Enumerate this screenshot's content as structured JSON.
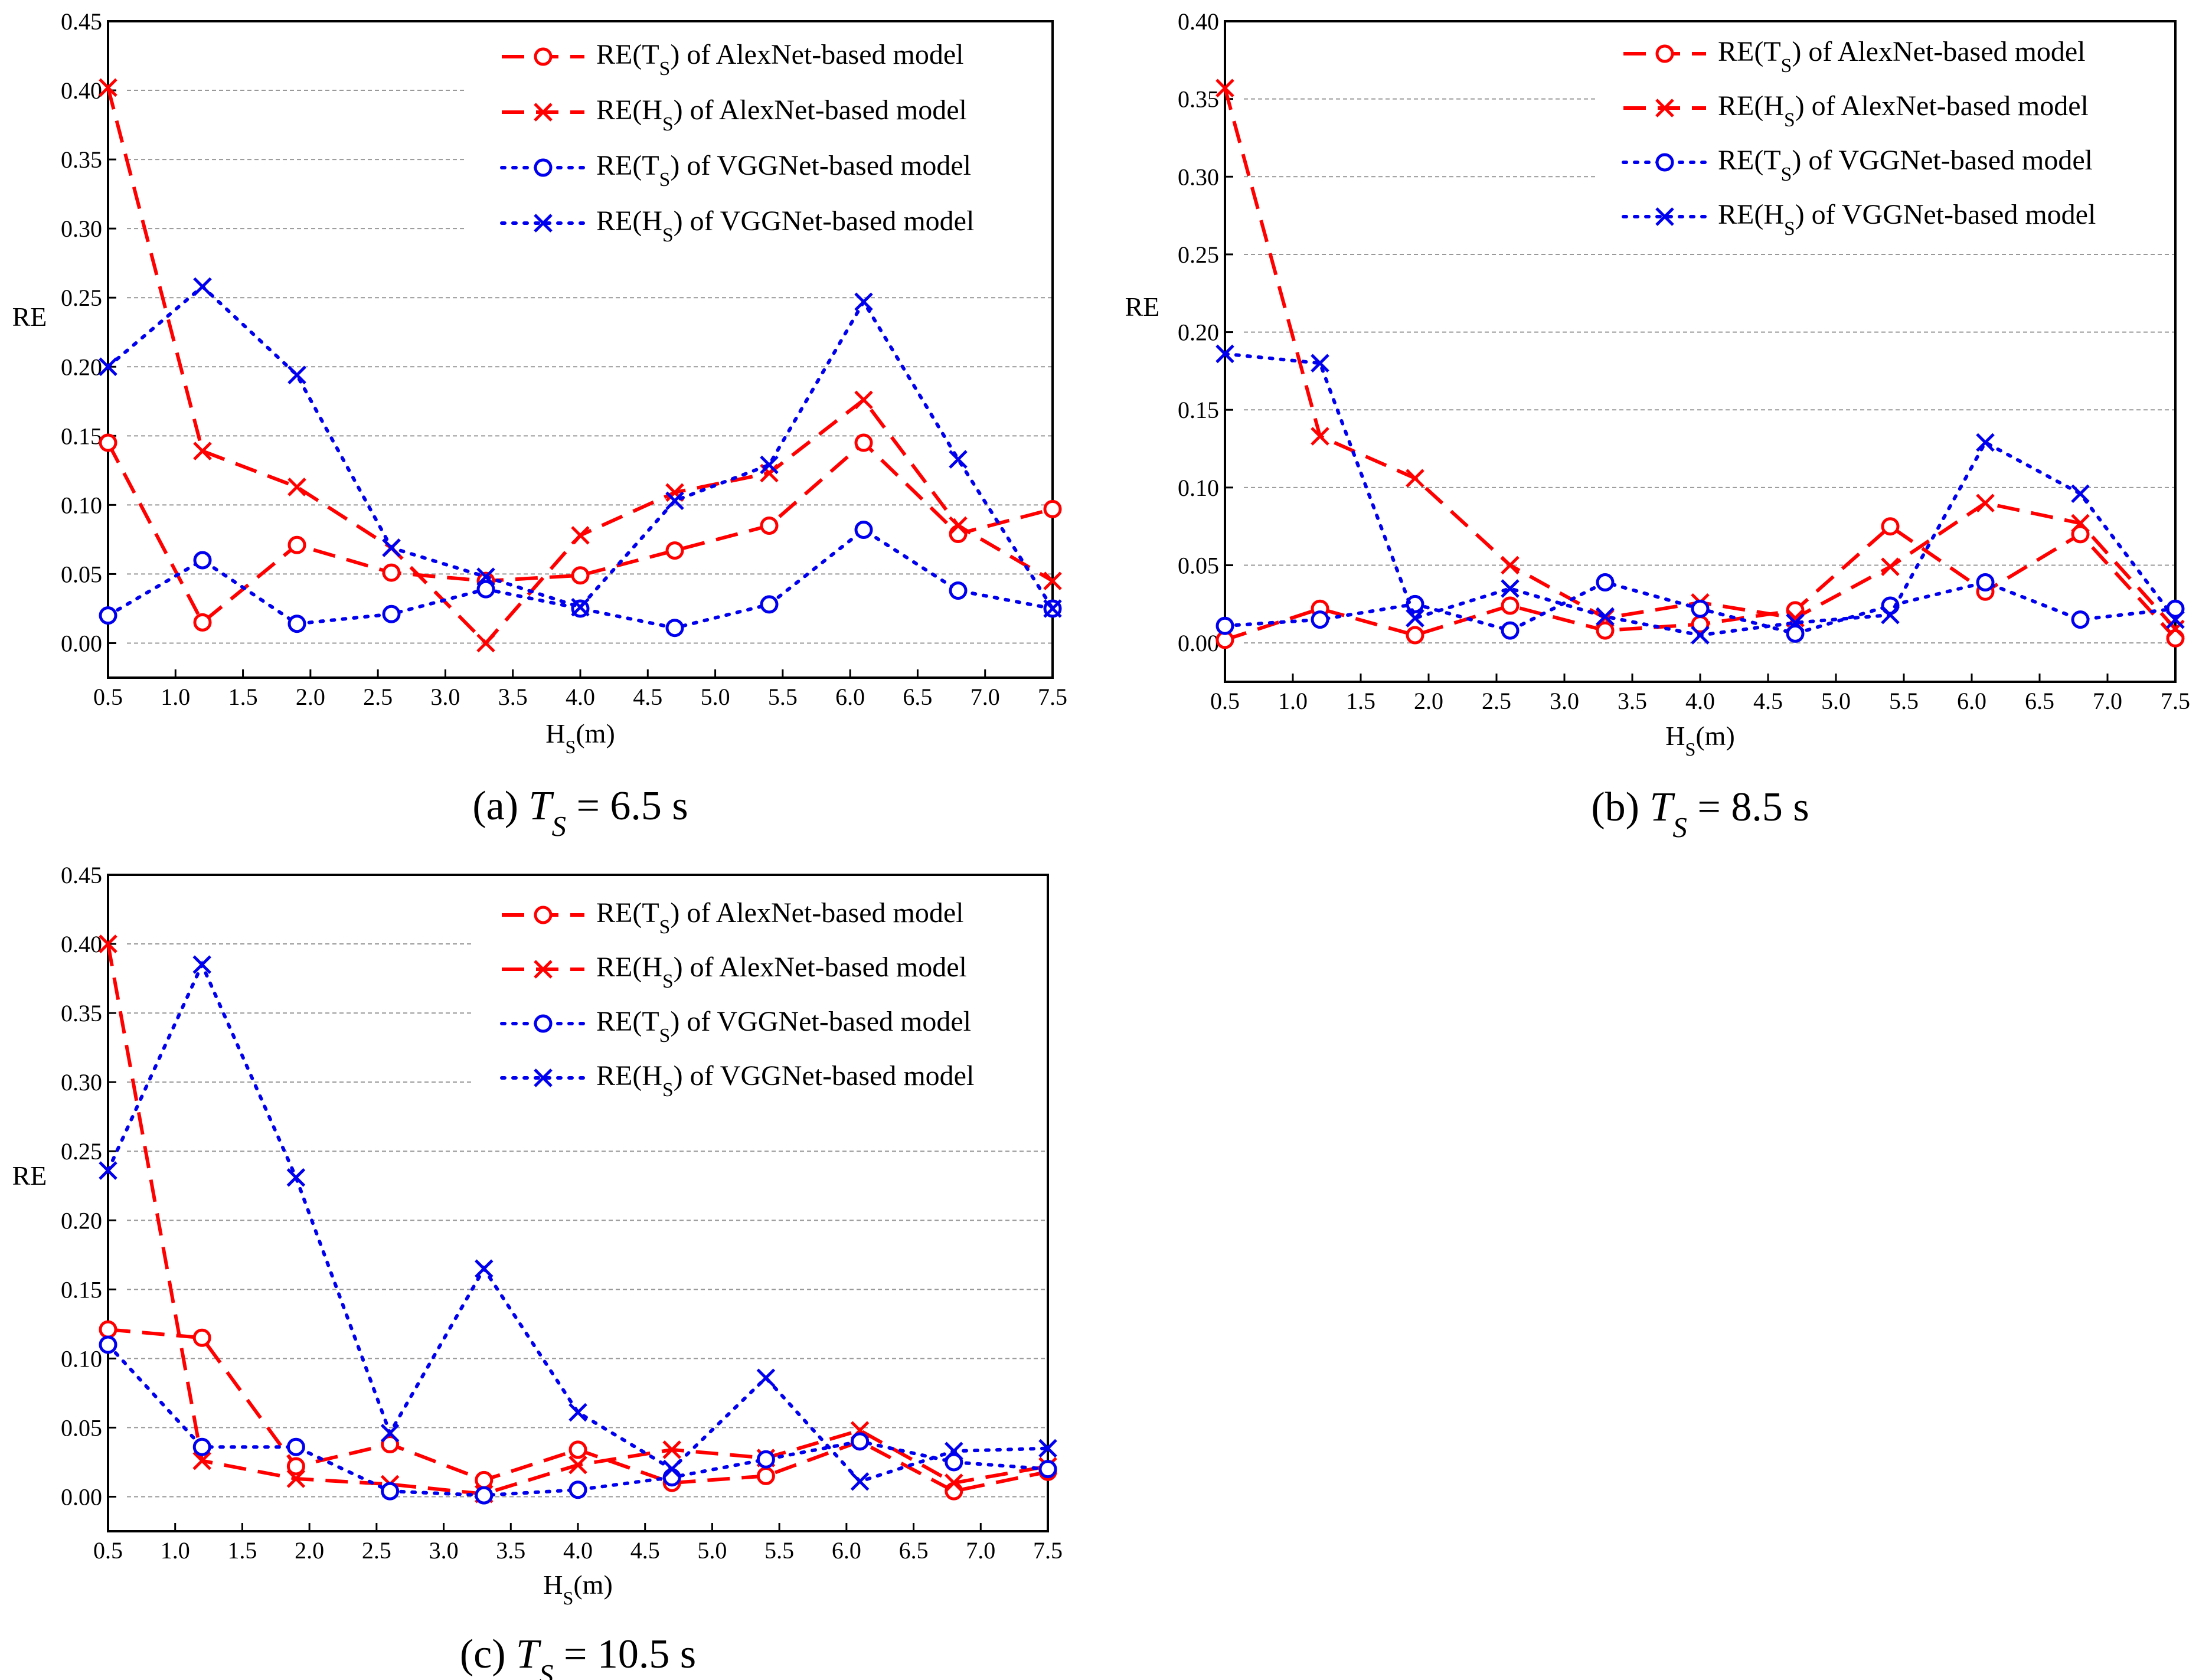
{
  "figure": {
    "panels": [
      {
        "id": "a",
        "caption": {
          "prefix": "(a) ",
          "var": "T",
          "sub": "S",
          "rest": " = 6.5 s"
        }
      },
      {
        "id": "b",
        "caption": {
          "prefix": "(b) ",
          "var": "T",
          "sub": "S",
          "rest": " = 8.5 s"
        }
      },
      {
        "id": "c",
        "caption": {
          "prefix": "(c) ",
          "var": "T",
          "sub": "S",
          "rest": " = 10.5 s"
        }
      }
    ],
    "colors": {
      "alexnet": "#ff0000",
      "vggnet": "#0000ee",
      "grid": "#999999"
    }
  },
  "chart_data": [
    {
      "type": "line",
      "ylabel": "RE",
      "xlabel": {
        "main": "H",
        "sub": "S",
        "rest": "(m)"
      },
      "xlim": [
        0.5,
        7.5
      ],
      "ylim": [
        -0.025,
        0.45
      ],
      "xticks": [
        "0.5",
        "1.0",
        "1.5",
        "2.0",
        "2.5",
        "3.0",
        "3.5",
        "4.0",
        "4.5",
        "5.0",
        "5.5",
        "6.0",
        "6.5",
        "7.0",
        "7.5"
      ],
      "yticks": [
        "0.00",
        "0.05",
        "0.10",
        "0.15",
        "0.20",
        "0.25",
        "0.30",
        "0.35",
        "0.40",
        "0.45"
      ],
      "grid": true,
      "legend_position": "top-right",
      "x": [
        0.5,
        1.2,
        1.9,
        2.6,
        3.3,
        4.0,
        4.7,
        5.4,
        6.1,
        6.8,
        7.5
      ],
      "series": [
        {
          "legend": {
            "pre": "RE(T",
            "sub": "S",
            "post": ") of AlexNet-based model"
          },
          "color": "#ff0000",
          "dash": "dashed",
          "marker": "circle",
          "values": [
            0.145,
            0.015,
            0.071,
            0.051,
            0.045,
            0.049,
            0.067,
            0.085,
            0.145,
            0.079,
            0.097
          ]
        },
        {
          "legend": {
            "pre": "RE(H",
            "sub": "S",
            "post": ") of AlexNet-based model"
          },
          "color": "#ff0000",
          "dash": "dashed",
          "marker": "x",
          "values": [
            0.402,
            0.139,
            0.113,
            0.069,
            0.0,
            0.078,
            0.109,
            0.123,
            0.176,
            0.085,
            0.045
          ]
        },
        {
          "legend": {
            "pre": "RE(T",
            "sub": "S",
            "post": ") of VGGNet-based model"
          },
          "color": "#0000ee",
          "dash": "dotted",
          "marker": "circle",
          "values": [
            0.02,
            0.06,
            0.014,
            0.021,
            0.039,
            0.025,
            0.011,
            0.028,
            0.082,
            0.038,
            0.025
          ]
        },
        {
          "legend": {
            "pre": "RE(H",
            "sub": "S",
            "post": ") of VGGNet-based model"
          },
          "color": "#0000ee",
          "dash": "dotted",
          "marker": "x",
          "values": [
            0.2,
            0.258,
            0.194,
            0.069,
            0.048,
            0.026,
            0.103,
            0.129,
            0.247,
            0.133,
            0.025
          ]
        }
      ]
    },
    {
      "type": "line",
      "ylabel": "RE",
      "xlabel": {
        "main": "H",
        "sub": "S",
        "rest": "(m)"
      },
      "xlim": [
        0.5,
        7.5
      ],
      "ylim": [
        -0.025,
        0.4
      ],
      "xticks": [
        "0.5",
        "1.0",
        "1.5",
        "2.0",
        "2.5",
        "3.0",
        "3.5",
        "4.0",
        "4.5",
        "5.0",
        "5.5",
        "6.0",
        "6.5",
        "7.0",
        "7.5"
      ],
      "yticks": [
        "0.00",
        "0.05",
        "0.10",
        "0.15",
        "0.20",
        "0.25",
        "0.30",
        "0.35",
        "0.40"
      ],
      "grid": true,
      "legend_position": "top-right",
      "x": [
        0.5,
        1.2,
        1.9,
        2.6,
        3.3,
        4.0,
        4.7,
        5.4,
        6.1,
        6.8,
        7.5
      ],
      "series": [
        {
          "legend": {
            "pre": "RE(T",
            "sub": "S",
            "post": ") of AlexNet-based model"
          },
          "color": "#ff0000",
          "dash": "dashed",
          "marker": "circle",
          "values": [
            0.002,
            0.022,
            0.005,
            0.024,
            0.008,
            0.012,
            0.021,
            0.075,
            0.033,
            0.07,
            0.003
          ]
        },
        {
          "legend": {
            "pre": "RE(H",
            "sub": "S",
            "post": ") of AlexNet-based model"
          },
          "color": "#ff0000",
          "dash": "dashed",
          "marker": "x",
          "values": [
            0.357,
            0.133,
            0.106,
            0.05,
            0.016,
            0.026,
            0.016,
            0.049,
            0.09,
            0.077,
            0.009
          ]
        },
        {
          "legend": {
            "pre": "RE(T",
            "sub": "S",
            "post": ") of VGGNet-based model"
          },
          "color": "#0000ee",
          "dash": "dotted",
          "marker": "circle",
          "values": [
            0.011,
            0.015,
            0.025,
            0.008,
            0.039,
            0.022,
            0.006,
            0.024,
            0.039,
            0.015,
            0.022
          ]
        },
        {
          "legend": {
            "pre": "RE(H",
            "sub": "S",
            "post": ") of VGGNet-based model"
          },
          "color": "#0000ee",
          "dash": "dotted",
          "marker": "x",
          "values": [
            0.186,
            0.18,
            0.016,
            0.035,
            0.017,
            0.005,
            0.013,
            0.018,
            0.129,
            0.096,
            0.015
          ]
        }
      ]
    },
    {
      "type": "line",
      "ylabel": "RE",
      "xlabel": {
        "main": "H",
        "sub": "S",
        "rest": "(m)"
      },
      "xlim": [
        0.5,
        7.5
      ],
      "ylim": [
        -0.025,
        0.45
      ],
      "xticks": [
        "0.5",
        "1.0",
        "1.5",
        "2.0",
        "2.5",
        "3.0",
        "3.5",
        "4.0",
        "4.5",
        "5.0",
        "5.5",
        "6.0",
        "6.5",
        "7.0",
        "7.5"
      ],
      "yticks": [
        "0.00",
        "0.05",
        "0.10",
        "0.15",
        "0.20",
        "0.25",
        "0.30",
        "0.35",
        "0.40",
        "0.45"
      ],
      "grid": true,
      "legend_position": "top-right",
      "x": [
        0.5,
        1.2,
        1.9,
        2.6,
        3.3,
        4.0,
        4.7,
        5.4,
        6.1,
        6.8,
        7.5
      ],
      "series": [
        {
          "legend": {
            "pre": "RE(T",
            "sub": "S",
            "post": ") of AlexNet-based model"
          },
          "color": "#ff0000",
          "dash": "dashed",
          "marker": "circle",
          "values": [
            0.121,
            0.115,
            0.022,
            0.038,
            0.012,
            0.034,
            0.01,
            0.015,
            0.04,
            0.004,
            0.018
          ]
        },
        {
          "legend": {
            "pre": "RE(H",
            "sub": "S",
            "post": ") of AlexNet-based model"
          },
          "color": "#ff0000",
          "dash": "dashed",
          "marker": "x",
          "values": [
            0.4,
            0.026,
            0.013,
            0.009,
            0.002,
            0.023,
            0.034,
            0.028,
            0.048,
            0.01,
            0.022
          ]
        },
        {
          "legend": {
            "pre": "RE(T",
            "sub": "S",
            "post": ") of VGGNet-based model"
          },
          "color": "#0000ee",
          "dash": "dotted",
          "marker": "circle",
          "values": [
            0.11,
            0.036,
            0.036,
            0.004,
            0.001,
            0.005,
            0.014,
            0.027,
            0.04,
            0.025,
            0.02
          ]
        },
        {
          "legend": {
            "pre": "RE(H",
            "sub": "S",
            "post": ") of VGGNet-based model"
          },
          "color": "#0000ee",
          "dash": "dotted",
          "marker": "x",
          "values": [
            0.236,
            0.385,
            0.231,
            0.046,
            0.165,
            0.061,
            0.02,
            0.086,
            0.011,
            0.033,
            0.035
          ]
        }
      ]
    }
  ]
}
